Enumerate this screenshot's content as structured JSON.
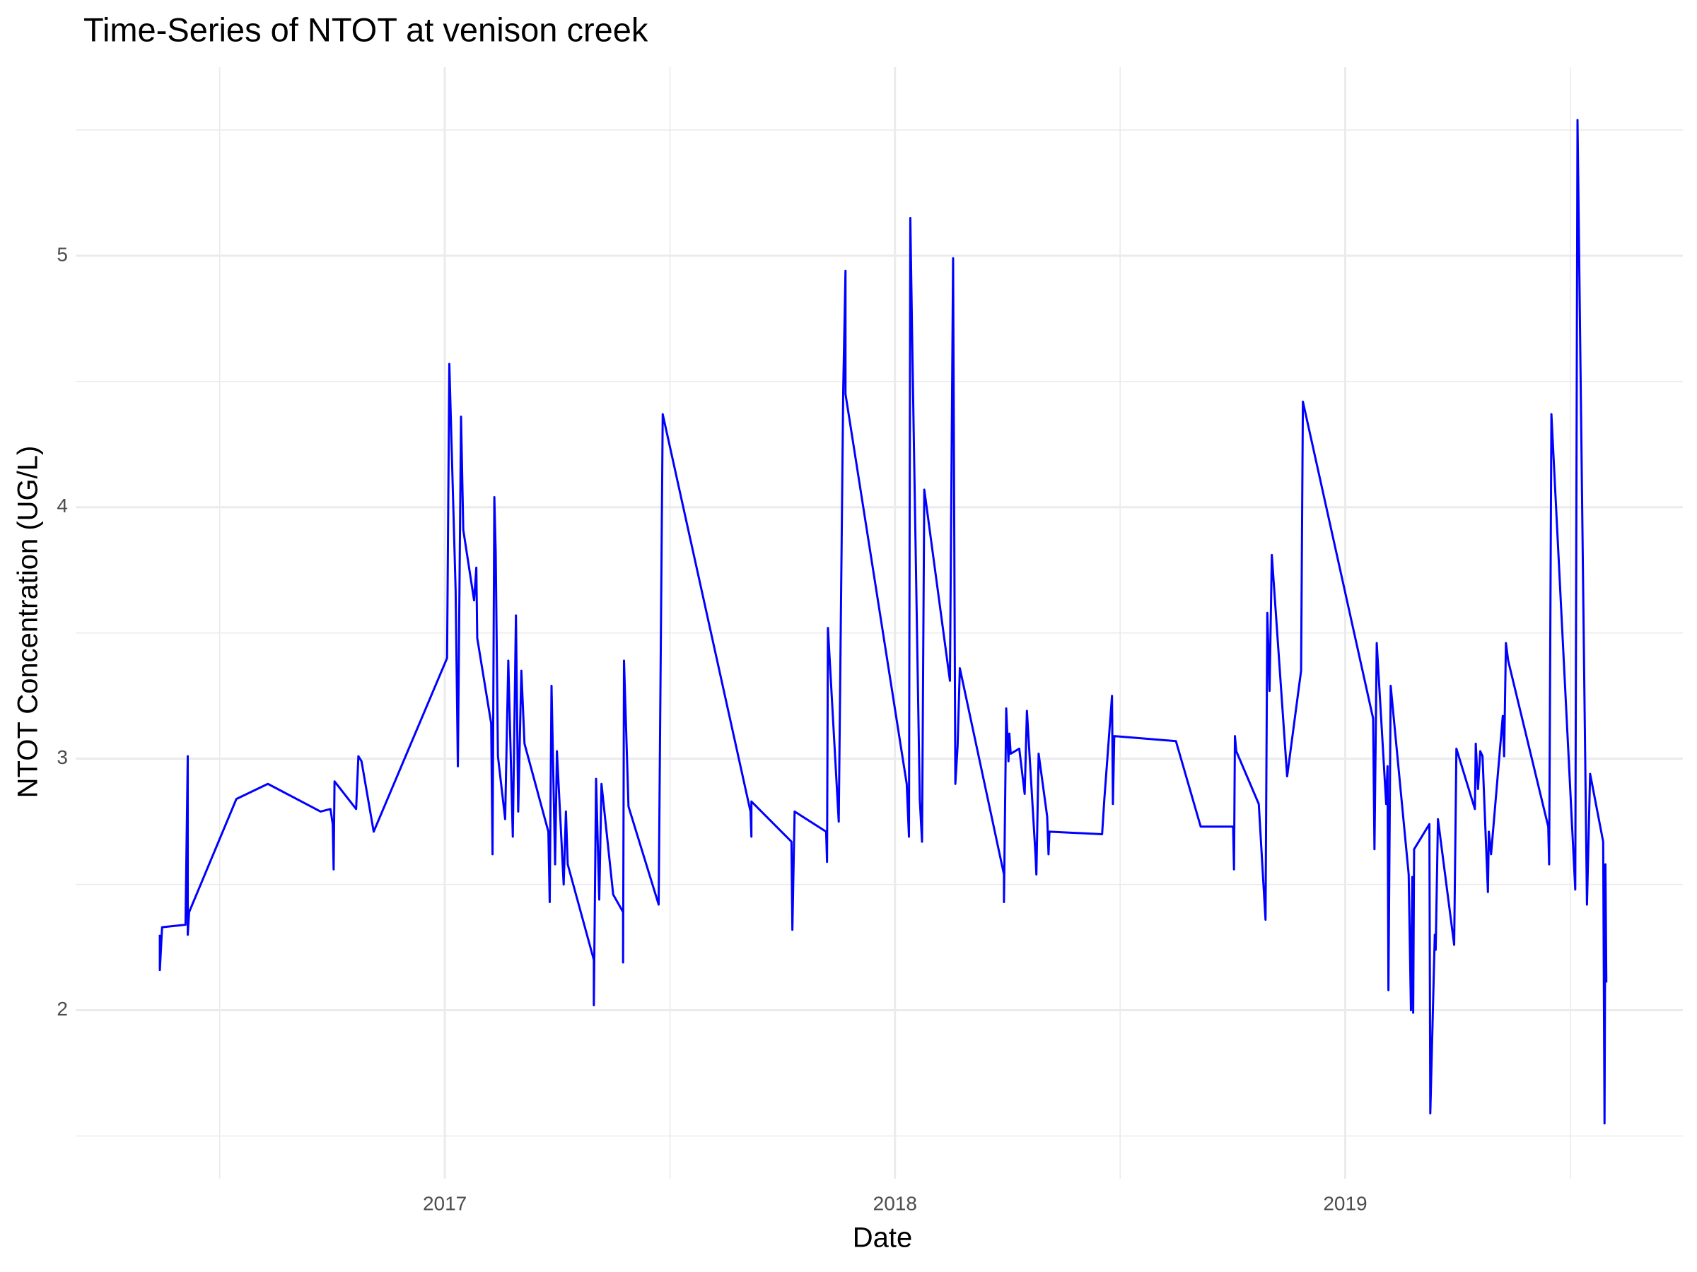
{
  "chart_data": {
    "type": "line",
    "title": "Time-Series of NTOT at venison creek",
    "x_label": "Date",
    "y_label": "NTOT Concentration (UG/L)",
    "color": "#0000ff",
    "grid": true,
    "xlim": [
      2016.18,
      2019.75
    ],
    "ylim": [
      1.33,
      5.75
    ],
    "xticks": [
      2017,
      2018,
      2019
    ],
    "yticks": [
      2,
      3,
      4,
      5
    ],
    "xminorticks": [
      2016.5,
      2017.5,
      2018.5,
      2019.5
    ],
    "yminorticks": [
      1.5,
      2.5,
      3.5,
      4.5,
      5.5
    ],
    "x": [
      2016.367,
      2016.367,
      2016.372,
      2016.424,
      2016.429,
      2016.429,
      2016.432,
      2016.537,
      2016.607,
      2016.724,
      2016.746,
      2016.751,
      2016.753,
      2016.755,
      2016.803,
      2016.808,
      2016.815,
      2016.842,
      2017.005,
      2017.01,
      2017.024,
      2017.029,
      2017.036,
      2017.041,
      2017.065,
      2017.07,
      2017.072,
      2017.103,
      2017.106,
      2017.11,
      2017.113,
      2017.118,
      2017.134,
      2017.141,
      2017.151,
      2017.158,
      2017.163,
      2017.17,
      2017.177,
      2017.23,
      2017.233,
      2017.237,
      2017.245,
      2017.249,
      2017.264,
      2017.269,
      2017.273,
      2017.331,
      2017.331,
      2017.336,
      2017.343,
      2017.348,
      2017.374,
      2017.396,
      2017.396,
      2017.398,
      2017.408,
      2017.475,
      2017.484,
      2017.679,
      2017.681,
      2017.681,
      2017.77,
      2017.772,
      2017.777,
      2017.847,
      2017.849,
      2017.851,
      2017.875,
      2017.885,
      2017.89,
      2017.89,
      2018.026,
      2018.031,
      2018.034,
      2018.038,
      2018.055,
      2018.06,
      2018.065,
      2018.122,
      2018.129,
      2018.134,
      2018.139,
      2018.144,
      2018.242,
      2018.242,
      2018.247,
      2018.252,
      2018.254,
      2018.257,
      2018.276,
      2018.288,
      2018.293,
      2018.312,
      2018.314,
      2018.319,
      2018.338,
      2018.341,
      2018.343,
      2018.46,
      2018.465,
      2018.482,
      2018.484,
      2018.487,
      2018.624,
      2018.679,
      2018.751,
      2018.753,
      2018.755,
      2018.758,
      2018.808,
      2018.823,
      2018.827,
      2018.832,
      2018.837,
      2018.871,
      2018.902,
      2018.906,
      2019.062,
      2019.065,
      2019.07,
      2019.091,
      2019.094,
      2019.096,
      2019.101,
      2019.141,
      2019.146,
      2019.149,
      2019.151,
      2019.153,
      2019.187,
      2019.189,
      2019.199,
      2019.201,
      2019.206,
      2019.242,
      2019.247,
      2019.288,
      2019.29,
      2019.295,
      2019.3,
      2019.305,
      2019.317,
      2019.319,
      2019.324,
      2019.35,
      2019.353,
      2019.357,
      2019.362,
      2019.451,
      2019.453,
      2019.458,
      2019.511,
      2019.516,
      2019.537,
      2019.544,
      2019.573,
      2019.576,
      2019.578,
      2019.58
    ],
    "values": [
      2.3,
      2.16,
      2.33,
      2.34,
      3.01,
      2.3,
      2.39,
      2.84,
      2.9,
      2.79,
      2.8,
      2.74,
      2.56,
      2.91,
      2.8,
      3.01,
      2.99,
      2.71,
      3.4,
      4.57,
      3.67,
      2.97,
      4.36,
      3.91,
      3.63,
      3.76,
      3.48,
      3.14,
      2.62,
      4.04,
      3.82,
      3.01,
      2.76,
      3.39,
      2.69,
      3.57,
      2.79,
      3.35,
      3.06,
      2.71,
      2.43,
      3.29,
      2.58,
      3.03,
      2.5,
      2.79,
      2.58,
      2.2,
      2.02,
      2.92,
      2.44,
      2.9,
      2.46,
      2.39,
      2.19,
      3.39,
      2.81,
      2.42,
      4.37,
      2.79,
      2.69,
      2.83,
      2.67,
      2.32,
      2.79,
      2.71,
      2.59,
      3.52,
      2.75,
      4.47,
      4.94,
      4.45,
      2.9,
      2.69,
      5.15,
      4.68,
      2.84,
      2.67,
      4.07,
      3.31,
      4.99,
      2.9,
      3.05,
      3.36,
      2.54,
      2.43,
      3.2,
      2.99,
      3.1,
      3.02,
      3.04,
      2.86,
      3.19,
      2.62,
      2.54,
      3.02,
      2.77,
      2.62,
      2.71,
      2.7,
      2.84,
      3.25,
      2.82,
      3.09,
      3.07,
      2.73,
      2.73,
      2.56,
      3.09,
      3.03,
      2.82,
      2.36,
      3.58,
      3.27,
      3.81,
      2.93,
      3.35,
      4.42,
      3.16,
      2.64,
      3.46,
      2.82,
      2.97,
      2.08,
      3.29,
      2.54,
      2.0,
      2.53,
      1.99,
      2.64,
      2.74,
      1.59,
      2.3,
      2.24,
      2.76,
      2.26,
      3.04,
      2.8,
      3.06,
      2.88,
      3.03,
      3.01,
      2.47,
      2.71,
      2.62,
      3.17,
      3.01,
      3.46,
      3.39,
      2.73,
      2.58,
      4.37,
      2.48,
      5.54,
      2.42,
      2.94,
      2.67,
      1.55,
      2.58,
      2.11
    ]
  }
}
